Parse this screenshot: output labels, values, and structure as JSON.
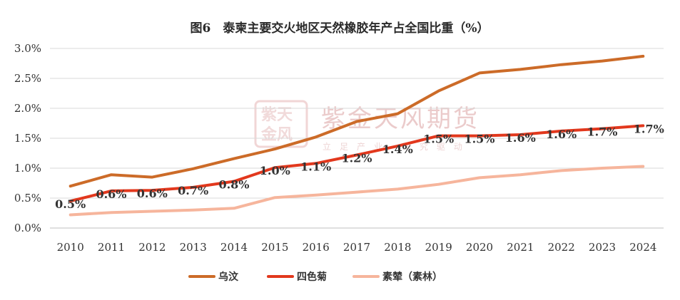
{
  "chart_data": {
    "type": "line",
    "title": "图6　泰柬主要交火地区天然橡胶年产占全国比重（%）",
    "xlabel": "",
    "ylabel": "",
    "x": [
      "2010",
      "2011",
      "2012",
      "2013",
      "2014",
      "2015",
      "2016",
      "2017",
      "2018",
      "2019",
      "2020",
      "2021",
      "2022",
      "2023",
      "2024"
    ],
    "ylim": [
      0,
      3.0
    ],
    "yticks": [
      "0.0%",
      "0.5%",
      "1.0%",
      "1.5%",
      "2.0%",
      "2.5%",
      "3.0%"
    ],
    "ytick_values": [
      0,
      0.5,
      1.0,
      1.5,
      2.0,
      2.5,
      3.0
    ],
    "grid": true,
    "legend_position": "bottom",
    "series": [
      {
        "name": "乌汶",
        "color": "#cc6b28",
        "values": [
          0.7,
          0.89,
          0.85,
          0.99,
          1.16,
          1.32,
          1.52,
          1.78,
          1.91,
          2.29,
          2.59,
          2.65,
          2.73,
          2.79,
          2.87
        ]
      },
      {
        "name": "四色菊",
        "color": "#e2381d",
        "values": [
          0.45,
          0.62,
          0.63,
          0.68,
          0.78,
          1.01,
          1.08,
          1.22,
          1.37,
          1.54,
          1.54,
          1.56,
          1.62,
          1.66,
          1.71
        ],
        "labels": [
          "0.5%",
          "0.6%",
          "0.6%",
          "0.7%",
          "0.8%",
          "1.0%",
          "1.1%",
          "1.2%",
          "1.4%",
          "1.5%",
          "1.5%",
          "1.6%",
          "1.6%",
          "1.7%",
          "1.7%"
        ]
      },
      {
        "name": "素辇（素林）",
        "color": "#f6b59c",
        "values": [
          0.22,
          0.26,
          0.28,
          0.3,
          0.33,
          0.51,
          0.55,
          0.6,
          0.65,
          0.73,
          0.84,
          0.89,
          0.96,
          1.0,
          1.03
        ]
      }
    ]
  },
  "watermark": {
    "brand": "紫金天风期货",
    "slogan": "立足产业 研究驱动",
    "seal": "紫金天风"
  }
}
